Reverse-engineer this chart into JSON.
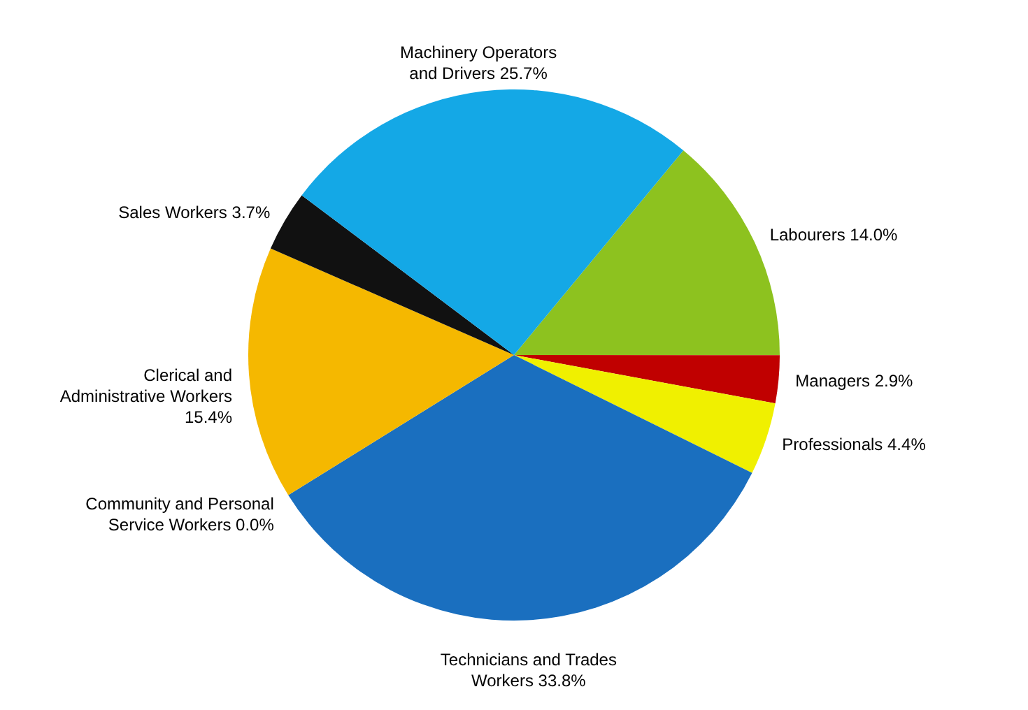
{
  "chart_data": {
    "type": "pie",
    "categories": [
      "Labourers",
      "Managers",
      "Professionals",
      "Technicians and Trades Workers",
      "Community and Personal Service Workers",
      "Clerical and Administrative Workers",
      "Sales Workers",
      "Machinery Operators and Drivers"
    ],
    "values": [
      14.0,
      2.9,
      4.4,
      33.8,
      0.0,
      15.4,
      3.7,
      25.7
    ],
    "value_labels": [
      "14.0%",
      "2.9%",
      "4.4%",
      "33.8%",
      "0.0%",
      "15.4%",
      "3.7%",
      "25.7%"
    ],
    "colors": [
      "#8dc21f",
      "#c00000",
      "#f0f000",
      "#1a6fbf",
      "#7f7f7f",
      "#f5b800",
      "#111111",
      "#14a8e6"
    ]
  }
}
